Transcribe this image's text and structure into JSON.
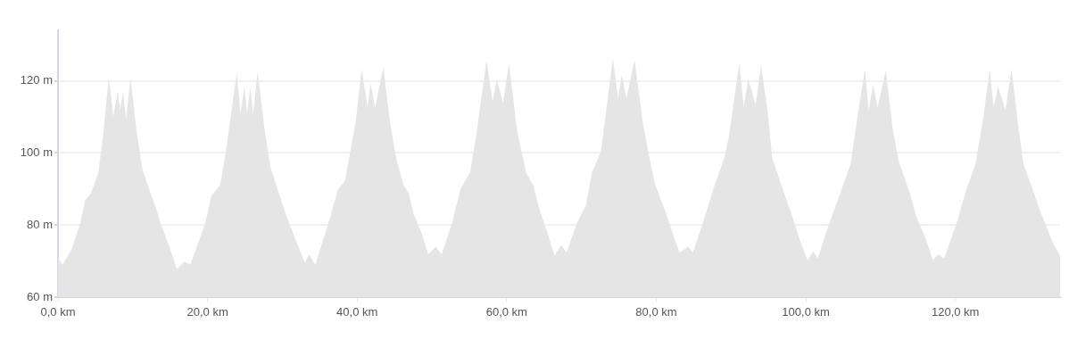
{
  "chart_data": {
    "type": "area",
    "grid": "y",
    "color": "#e5e5e5",
    "xlim": [
      0,
      134
    ],
    "ylim": [
      60,
      134
    ],
    "xticks": [
      {
        "value": 0,
        "label": "0,0 km"
      },
      {
        "value": 20,
        "label": "20,0 km"
      },
      {
        "value": 40,
        "label": "40,0 km"
      },
      {
        "value": 60,
        "label": "60,0 km"
      },
      {
        "value": 80,
        "label": "80,0 km"
      },
      {
        "value": 100,
        "label": "100,0 km"
      },
      {
        "value": 120,
        "label": "120,0 km"
      }
    ],
    "yticks": [
      {
        "value": 60,
        "label": "60 m"
      },
      {
        "value": 80,
        "label": "80 m"
      },
      {
        "value": 100,
        "label": "100 m"
      },
      {
        "value": 120,
        "label": "120 m"
      }
    ],
    "x": [
      0,
      0.6,
      1.8,
      3.0,
      3.6,
      4.4,
      5.4,
      6.0,
      6.8,
      7.4,
      8.0,
      8.3,
      8.7,
      9.1,
      9.7,
      10.5,
      11.3,
      12.5,
      13.1,
      13.7,
      14.9,
      15.9,
      16.9,
      17.7,
      19.7,
      20.5,
      21.7,
      22.5,
      23.9,
      24.4,
      24.9,
      25.3,
      25.7,
      26.1,
      26.7,
      27.6,
      28.4,
      29.4,
      30.6,
      32.0,
      33.0,
      33.6,
      34.4,
      36.4,
      37.4,
      38.4,
      39.8,
      40.6,
      41.4,
      41.8,
      42.4,
      43.5,
      44.4,
      45.2,
      46.2,
      46.9,
      47.5,
      48.7,
      49.5,
      50.5,
      51.3,
      52.7,
      53.9,
      55.1,
      55.9,
      57.3,
      58.1,
      58.7,
      59.5,
      60.3,
      61.4,
      62.6,
      63.6,
      64.2,
      65.4,
      66.4,
      67.3,
      68.0,
      69.4,
      70.6,
      71.4,
      72.6,
      74.2,
      74.9,
      75.4,
      76.0,
      77.1,
      78.2,
      79.0,
      79.8,
      80.6,
      81.2,
      83.1,
      84.3,
      84.9,
      86.1,
      87.7,
      89.1,
      89.7,
      91.1,
      91.7,
      92.3,
      93.3,
      94.0,
      94.9,
      95.5,
      96.9,
      98.1,
      99.1,
      100.2,
      101.0,
      101.6,
      103.0,
      104.6,
      106.0,
      106.8,
      107.9,
      108.4,
      109.0,
      109.6,
      110.7,
      111.6,
      112.4,
      113.8,
      114.8,
      116.0,
      117.0,
      117.7,
      118.5,
      120.3,
      121.3,
      122.7,
      123.7,
      124.6,
      125.1,
      125.7,
      126.7,
      127.5,
      128.5,
      129.1,
      130.1,
      131.5,
      133.1,
      134.0
    ],
    "values": [
      70.7,
      69,
      73.2,
      80.6,
      86.7,
      88.8,
      94.5,
      104.4,
      120.8,
      110.1,
      117.1,
      111.8,
      117.1,
      109.3,
      120.8,
      106,
      95.3,
      88,
      84.7,
      80.6,
      74,
      67.8,
      69.9,
      69,
      80.6,
      88,
      91.2,
      101.1,
      122.1,
      111,
      118.2,
      111,
      118.2,
      111,
      122.6,
      106.9,
      96.2,
      89.6,
      82.2,
      74.8,
      69.5,
      71.9,
      69,
      82.2,
      89.6,
      92.5,
      108.5,
      123.3,
      112.6,
      119.2,
      112.6,
      123.7,
      108.5,
      98.6,
      91.2,
      88.8,
      83.4,
      77.3,
      71.9,
      74,
      71.9,
      80.6,
      90.4,
      94.5,
      104.4,
      125.8,
      114.3,
      120.4,
      113.8,
      124.9,
      106,
      94.5,
      90.8,
      85.5,
      78.1,
      71.5,
      74.4,
      72.3,
      80.6,
      85.5,
      94.5,
      100.3,
      126.2,
      115.1,
      121.7,
      115.1,
      125.8,
      108.5,
      99.5,
      91.6,
      87.1,
      83.8,
      72.3,
      74,
      72.3,
      79.7,
      90.4,
      98.6,
      104.4,
      124.9,
      113,
      120.4,
      113.4,
      124.5,
      111.5,
      98.6,
      90,
      83,
      76.4,
      70.3,
      72.7,
      70.7,
      79.7,
      88.8,
      97,
      108.5,
      123.3,
      111.8,
      118.8,
      112.6,
      122.9,
      106.9,
      97.8,
      89.6,
      82.2,
      76.4,
      70.3,
      71.9,
      70.7,
      81.4,
      88.8,
      97,
      109.3,
      123.3,
      112.6,
      118.4,
      111.8,
      123.3,
      106,
      97,
      91.2,
      83,
      74.8,
      71.5
    ]
  }
}
